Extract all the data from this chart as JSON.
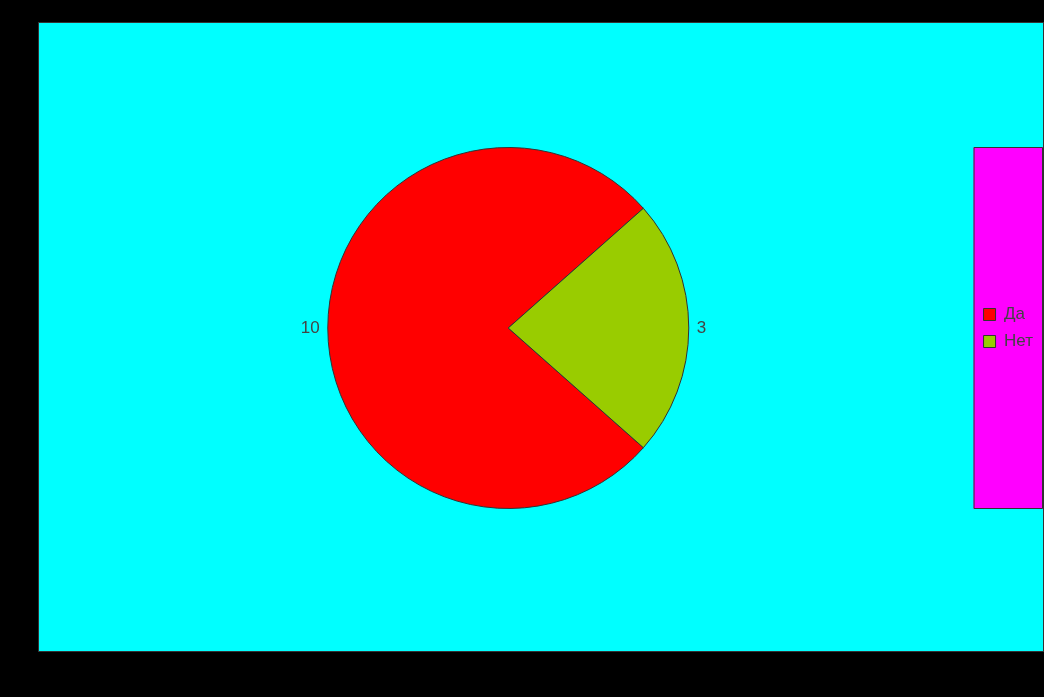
{
  "chart_data": {
    "type": "pie",
    "categories": [
      "Да",
      "Нет"
    ],
    "values": [
      10,
      3
    ],
    "colors": [
      "#ff0000",
      "#99cc00"
    ],
    "data_labels": true,
    "legend": "right"
  }
}
